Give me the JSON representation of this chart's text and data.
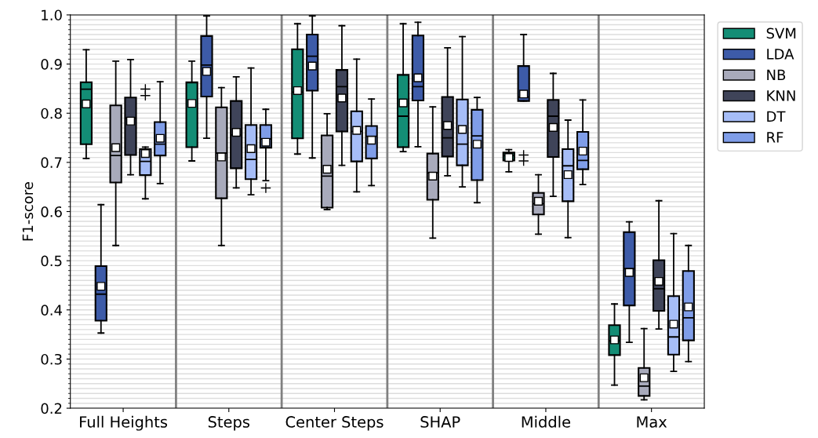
{
  "chart_data": {
    "type": "box",
    "ylabel": "F1-score",
    "categories": [
      "Full Heights",
      "Steps",
      "Center Steps",
      "SHAP",
      "Middle",
      "Max"
    ],
    "ylim": [
      0.2,
      1.0
    ],
    "yticks": [
      0.2,
      0.3,
      0.4,
      0.5,
      0.6,
      0.7,
      0.8,
      0.9,
      {
        "value": 1.0,
        "label": "1.0"
      }
    ],
    "grid": "y",
    "legend": "right",
    "series": [
      {
        "name": "SVM",
        "color": "#138d75",
        "boxes": [
          {
            "low": 0.708,
            "q1": 0.737,
            "median": 0.849,
            "q3": 0.863,
            "high": 0.929,
            "mean": 0.819
          },
          {
            "low": 0.703,
            "q1": 0.731,
            "median": 0.862,
            "q3": 0.863,
            "high": 0.906,
            "mean": 0.82
          },
          {
            "low": 0.717,
            "q1": 0.749,
            "median": 0.843,
            "q3": 0.93,
            "high": 0.982,
            "mean": 0.846
          },
          {
            "low": 0.722,
            "q1": 0.731,
            "median": 0.794,
            "q3": 0.878,
            "high": 0.982,
            "mean": 0.821
          },
          {
            "low": 0.681,
            "q1": 0.704,
            "median": 0.714,
            "q3": 0.72,
            "high": 0.726,
            "mean": 0.71
          },
          {
            "low": 0.247,
            "q1": 0.308,
            "median": 0.337,
            "q3": 0.369,
            "high": 0.412,
            "mean": 0.339
          }
        ]
      },
      {
        "name": "LDA",
        "color": "#3d5ba8",
        "boxes": [
          {
            "low": 0.353,
            "q1": 0.378,
            "median": 0.432,
            "q3": 0.489,
            "high": 0.614,
            "mean": 0.448
          },
          {
            "low": 0.749,
            "q1": 0.834,
            "median": 0.898,
            "q3": 0.957,
            "high": 0.998,
            "mean": 0.885
          },
          {
            "low": 0.709,
            "q1": 0.846,
            "median": 0.916,
            "q3": 0.96,
            "high": 0.998,
            "mean": 0.896
          },
          {
            "low": 0.732,
            "q1": 0.826,
            "median": 0.854,
            "q3": 0.958,
            "high": 0.985,
            "mean": 0.872
          },
          {
            "low": 0.825,
            "q1": 0.825,
            "median": 0.833,
            "q3": 0.896,
            "high": 0.96,
            "mean": 0.839,
            "outliers": [
              0.715,
              0.703
            ]
          },
          {
            "low": 0.334,
            "q1": 0.409,
            "median": 0.484,
            "q3": 0.558,
            "high": 0.579,
            "mean": 0.476
          }
        ]
      },
      {
        "name": "NB",
        "color": "#a8aabb",
        "boxes": [
          {
            "low": 0.531,
            "q1": 0.659,
            "median": 0.714,
            "q3": 0.816,
            "high": 0.906,
            "mean": 0.73
          },
          {
            "low": 0.531,
            "q1": 0.627,
            "median": 0.719,
            "q3": 0.812,
            "high": 0.852,
            "mean": 0.711
          },
          {
            "low": 0.604,
            "q1": 0.608,
            "median": 0.672,
            "q3": 0.755,
            "high": 0.799,
            "mean": 0.686
          },
          {
            "low": 0.546,
            "q1": 0.624,
            "median": 0.679,
            "q3": 0.718,
            "high": 0.813,
            "mean": 0.672
          },
          {
            "low": 0.554,
            "q1": 0.594,
            "median": 0.616,
            "q3": 0.638,
            "high": 0.675,
            "mean": 0.621
          },
          {
            "low": 0.217,
            "q1": 0.225,
            "median": 0.245,
            "q3": 0.282,
            "high": 0.362,
            "mean": 0.262
          }
        ]
      },
      {
        "name": "KNN",
        "color": "#3f4459",
        "boxes": [
          {
            "low": 0.675,
            "q1": 0.715,
            "median": 0.79,
            "q3": 0.832,
            "high": 0.909,
            "mean": 0.784
          },
          {
            "low": 0.648,
            "q1": 0.688,
            "median": 0.756,
            "q3": 0.825,
            "high": 0.874,
            "mean": 0.761
          },
          {
            "low": 0.694,
            "q1": 0.763,
            "median": 0.854,
            "q3": 0.888,
            "high": 0.978,
            "mean": 0.831
          },
          {
            "low": 0.673,
            "q1": 0.712,
            "median": 0.75,
            "q3": 0.833,
            "high": 0.933,
            "mean": 0.775
          },
          {
            "low": 0.631,
            "q1": 0.711,
            "median": 0.794,
            "q3": 0.827,
            "high": 0.881,
            "mean": 0.771
          },
          {
            "low": 0.361,
            "q1": 0.398,
            "median": 0.443,
            "q3": 0.501,
            "high": 0.622,
            "mean": 0.458
          }
        ]
      },
      {
        "name": "DT",
        "color": "#a6bdf7",
        "boxes": [
          {
            "low": 0.626,
            "q1": 0.674,
            "median": 0.702,
            "q3": 0.727,
            "high": 0.731,
            "mean": 0.718,
            "outliers": [
              0.849,
              0.836
            ]
          },
          {
            "low": 0.634,
            "q1": 0.666,
            "median": 0.706,
            "q3": 0.776,
            "high": 0.892,
            "mean": 0.728
          },
          {
            "low": 0.64,
            "q1": 0.702,
            "median": 0.763,
            "q3": 0.804,
            "high": 0.91,
            "mean": 0.765
          },
          {
            "low": 0.65,
            "q1": 0.694,
            "median": 0.737,
            "q3": 0.828,
            "high": 0.956,
            "mean": 0.767
          },
          {
            "low": 0.547,
            "q1": 0.621,
            "median": 0.693,
            "q3": 0.727,
            "high": 0.786,
            "mean": 0.675
          },
          {
            "low": 0.275,
            "q1": 0.309,
            "median": 0.345,
            "q3": 0.428,
            "high": 0.555,
            "mean": 0.371
          }
        ]
      },
      {
        "name": "RF",
        "color": "#7f9de8",
        "boxes": [
          {
            "low": 0.657,
            "q1": 0.714,
            "median": 0.737,
            "q3": 0.782,
            "high": 0.864,
            "mean": 0.749
          },
          {
            "low": 0.663,
            "q1": 0.73,
            "median": 0.748,
            "q3": 0.776,
            "high": 0.808,
            "mean": 0.741,
            "outliers": [
              0.648
            ]
          },
          {
            "low": 0.653,
            "q1": 0.708,
            "median": 0.753,
            "q3": 0.774,
            "high": 0.829,
            "mean": 0.745
          },
          {
            "low": 0.618,
            "q1": 0.664,
            "median": 0.754,
            "q3": 0.807,
            "high": 0.832,
            "mean": 0.737
          },
          {
            "low": 0.655,
            "q1": 0.686,
            "median": 0.704,
            "q3": 0.762,
            "high": 0.827,
            "mean": 0.723
          },
          {
            "low": 0.295,
            "q1": 0.338,
            "median": 0.384,
            "q3": 0.479,
            "high": 0.531,
            "mean": 0.406
          }
        ]
      }
    ]
  }
}
